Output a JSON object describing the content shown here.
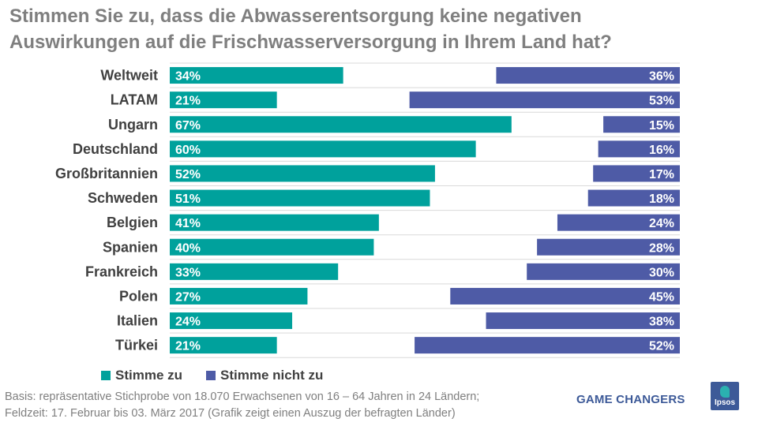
{
  "chart_data": {
    "type": "bar",
    "orientation": "horizontal",
    "stacked_diverging": true,
    "title": "Stimmen Sie zu, dass die Abwasserentsorgung keine negativen Auswirkungen auf die Frischwasserversorgung in Ihrem Land hat?",
    "title_lines": [
      "Stimmen Sie zu, dass die Abwasserentsorgung keine negativen",
      "Auswirkungen auf die Frischwasserversorgung in Ihrem Land hat?"
    ],
    "categories": [
      "Weltweit",
      "LATAM",
      "Ungarn",
      "Deutschland",
      "Großbritannien",
      "Schweden",
      "Belgien",
      "Spanien",
      "Frankreich",
      "Polen",
      "Italien",
      "Türkei"
    ],
    "series": [
      {
        "name": "Stimme zu",
        "values": [
          34,
          21,
          67,
          60,
          52,
          51,
          41,
          40,
          33,
          27,
          24,
          21
        ],
        "color": "#00a19c",
        "anchor": "left"
      },
      {
        "name": "Stimme nicht zu",
        "values": [
          36,
          53,
          15,
          16,
          17,
          18,
          24,
          28,
          30,
          45,
          38,
          52
        ],
        "color": "#4e5ba6",
        "anchor": "right"
      }
    ],
    "value_suffix": "%",
    "xlim": [
      0,
      100
    ],
    "legend": "bottom-left",
    "grid": "horizontal separators"
  },
  "footnote": {
    "line1": "Basis: repräsentative Stichprobe von 18.070 Erwachsenen von 16 – 64 Jahren in 24 Ländern;",
    "line2": "Feldzeit: 17. Februar bis 03. März 2017 (Grafik zeigt einen Auszug der befragten Länder)"
  },
  "branding": {
    "tagline": "GAME CHANGERS",
    "logo_text": "Ipsos",
    "brand_color": "#3d5a98"
  }
}
